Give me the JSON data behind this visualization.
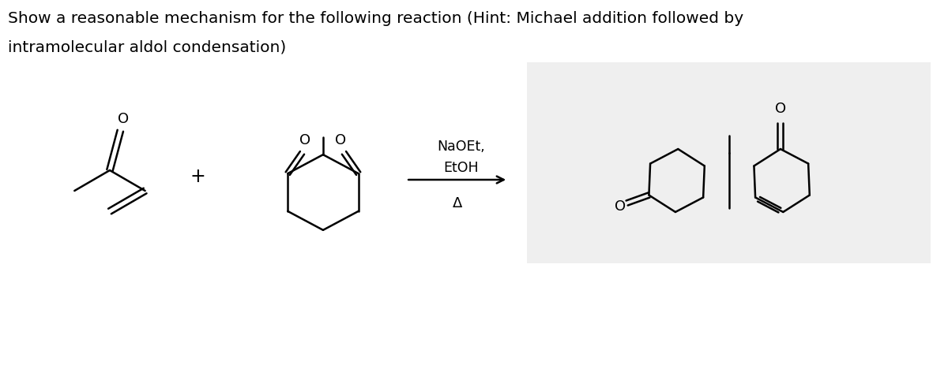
{
  "title_line1": "Show a reasonable mechanism for the following reaction (Hint: Michael addition followed by",
  "title_line2": "intramolecular aldol condensation)",
  "reagents_line1": "NaOEt,",
  "reagents_line2": "EtOH",
  "reagents_line3": "Δ",
  "bg_color": "#ffffff",
  "product_bg": "#efefef",
  "text_color": "#000000",
  "line_color": "#000000",
  "plus_sign": "+",
  "font_size_title": 14.5,
  "font_size_reagent": 12.5,
  "font_size_O": 13,
  "lw": 1.8
}
